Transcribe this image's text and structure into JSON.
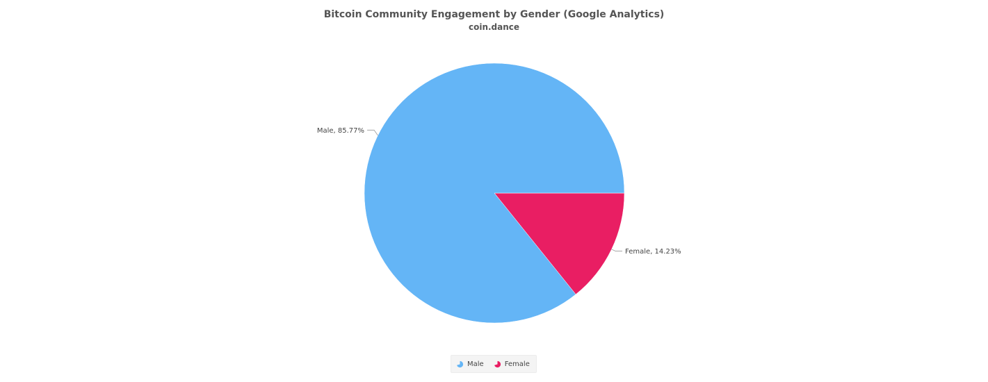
{
  "chart_data": {
    "type": "pie",
    "title": "Bitcoin Community Engagement by Gender (Google Analytics)",
    "subtitle": "coin.dance",
    "slices": [
      {
        "name": "Male",
        "value": 85.77,
        "label": "Male, 85.77%",
        "color": "#64b5f6"
      },
      {
        "name": "Female",
        "value": 14.23,
        "label": "Female, 14.23%",
        "color": "#e91e63"
      }
    ],
    "legend": {
      "position": "bottom-center",
      "items": [
        {
          "name": "Male",
          "color": "#64b5f6",
          "icon": "pie-slice-icon"
        },
        {
          "name": "Female",
          "color": "#e91e63",
          "icon": "pie-slice-icon"
        }
      ]
    }
  }
}
